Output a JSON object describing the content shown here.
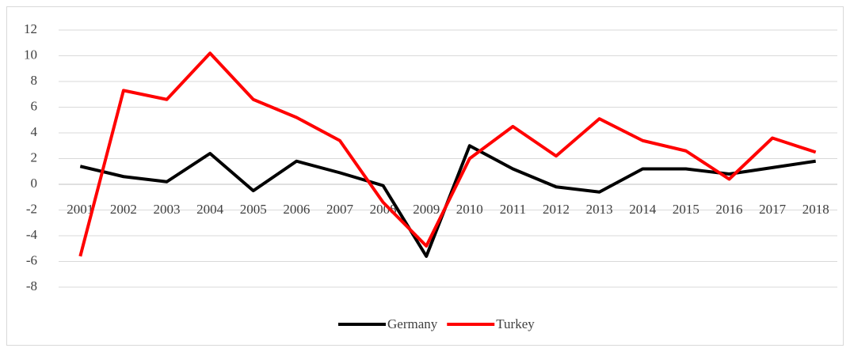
{
  "chart_data": {
    "type": "line",
    "categories": [
      "2001",
      "2002",
      "2003",
      "2004",
      "2005",
      "2006",
      "2007",
      "2008",
      "2009",
      "2010",
      "2011",
      "2012",
      "2013",
      "2014",
      "2015",
      "2016",
      "2017",
      "2018"
    ],
    "series": [
      {
        "name": "Germany",
        "color": "#000000",
        "values": [
          1.4,
          0.6,
          0.2,
          2.4,
          -0.5,
          1.8,
          0.9,
          -0.1,
          -5.6,
          3.0,
          1.2,
          -0.2,
          -0.6,
          1.2,
          1.2,
          0.8,
          1.3,
          1.8
        ]
      },
      {
        "name": "Turkey",
        "color": "#ff0000",
        "values": [
          -5.6,
          7.3,
          6.6,
          10.2,
          6.6,
          5.2,
          3.4,
          -1.4,
          -4.8,
          2.0,
          4.5,
          2.2,
          5.1,
          3.4,
          2.6,
          0.4,
          3.6,
          2.5
        ]
      }
    ],
    "ylim": [
      -8,
      12
    ],
    "yticks": [
      -8,
      -6,
      -4,
      -2,
      0,
      2,
      4,
      6,
      8,
      10,
      12
    ],
    "grid": true,
    "legend": "bottom"
  }
}
